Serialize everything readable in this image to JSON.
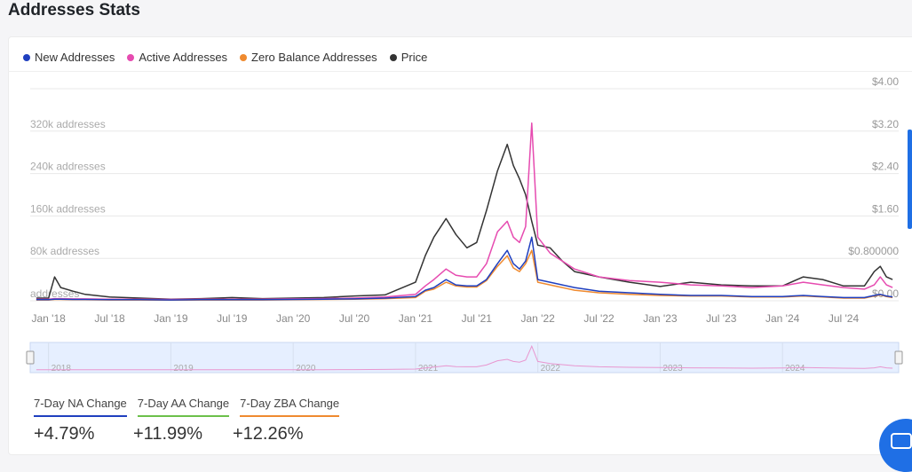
{
  "page_title": "Addresses Stats",
  "legend": [
    {
      "label": "New Addresses",
      "color": "#1f3fbf"
    },
    {
      "label": "Active Addresses",
      "color": "#e64bb0"
    },
    {
      "label": "Zero Balance Addresses",
      "color": "#ef8a2f"
    },
    {
      "label": "Price",
      "color": "#333333"
    }
  ],
  "tabs": [
    {
      "label": "7-Day NA Change",
      "value": "+4.79%",
      "color": "#1f3fbf"
    },
    {
      "label": "7-Day AA Change",
      "value": "+11.99%",
      "color": "#6cc04a"
    },
    {
      "label": "7-Day ZBA Change",
      "value": "+12.26%",
      "color": "#ef8a2f"
    }
  ],
  "chart_data": {
    "type": "line",
    "x_tick_labels": [
      "Jan '18",
      "Jul '18",
      "Jan '19",
      "Jul '19",
      "Jan '20",
      "Jul '20",
      "Jan '21",
      "Jul '21",
      "Jan '22",
      "Jul '22",
      "Jan '23",
      "Jul '23",
      "Jan '24",
      "Jul '24"
    ],
    "left_axis": {
      "tick_labels": [
        "addresses",
        "80k addresses",
        "160k addresses",
        "240k addresses",
        "320k addresses"
      ],
      "ylim": [
        0,
        400000
      ]
    },
    "right_axis": {
      "tick_labels": [
        "$0.00",
        "$0.800000",
        "$1.60",
        "$2.40",
        "$3.20",
        "$4.00"
      ],
      "ylim": [
        0,
        4.0
      ]
    },
    "navigator_labels": [
      "2018",
      "2019",
      "2020",
      "2021",
      "2022",
      "2023",
      "2024"
    ],
    "x": [
      2017.9,
      2018.0,
      2018.05,
      2018.1,
      2018.2,
      2018.3,
      2018.5,
      2018.75,
      2019.0,
      2019.25,
      2019.5,
      2019.75,
      2020.0,
      2020.25,
      2020.5,
      2020.75,
      2021.0,
      2021.08,
      2021.15,
      2021.25,
      2021.33,
      2021.42,
      2021.5,
      2021.58,
      2021.67,
      2021.75,
      2021.8,
      2021.85,
      2021.9,
      2021.95,
      2022.0,
      2022.1,
      2022.2,
      2022.3,
      2022.5,
      2022.75,
      2023.0,
      2023.25,
      2023.5,
      2023.75,
      2024.0,
      2024.17,
      2024.33,
      2024.5,
      2024.67,
      2024.75,
      2024.8,
      2024.85,
      2024.9
    ],
    "series": [
      {
        "name": "Price",
        "axis": "right",
        "values": [
          0.05,
          0.05,
          0.45,
          0.25,
          0.18,
          0.12,
          0.07,
          0.05,
          0.03,
          0.04,
          0.06,
          0.04,
          0.05,
          0.06,
          0.09,
          0.11,
          0.35,
          0.85,
          1.2,
          1.55,
          1.25,
          1.0,
          1.1,
          1.7,
          2.45,
          2.95,
          2.55,
          2.3,
          2.0,
          1.5,
          1.05,
          1.0,
          0.75,
          0.55,
          0.45,
          0.35,
          0.27,
          0.35,
          0.3,
          0.28,
          0.28,
          0.45,
          0.4,
          0.28,
          0.28,
          0.55,
          0.65,
          0.45,
          0.4
        ]
      },
      {
        "name": "New Addresses",
        "axis": "left",
        "values": [
          2000,
          2000,
          3000,
          3000,
          2500,
          2500,
          2000,
          2000,
          1500,
          2000,
          2000,
          2000,
          2500,
          3000,
          3500,
          5000,
          8000,
          20000,
          25000,
          40000,
          30000,
          28000,
          28000,
          40000,
          70000,
          95000,
          70000,
          60000,
          75000,
          120000,
          40000,
          35000,
          30000,
          25000,
          18000,
          15000,
          12000,
          10000,
          10000,
          8000,
          8000,
          10000,
          8000,
          6000,
          6000,
          10000,
          12000,
          9000,
          7000
        ]
      },
      {
        "name": "Active Addresses",
        "axis": "left",
        "values": [
          3000,
          3000,
          4000,
          4000,
          3500,
          3500,
          3000,
          3000,
          2500,
          3000,
          3000,
          3000,
          3500,
          4000,
          5000,
          7000,
          12000,
          28000,
          40000,
          60000,
          48000,
          45000,
          45000,
          70000,
          130000,
          150000,
          120000,
          110000,
          140000,
          335000,
          120000,
          90000,
          75000,
          60000,
          45000,
          38000,
          35000,
          30000,
          28000,
          25000,
          28000,
          35000,
          30000,
          25000,
          22000,
          30000,
          45000,
          30000,
          25000
        ]
      },
      {
        "name": "Zero Balance Addresses",
        "axis": "left",
        "values": [
          1500,
          1500,
          2500,
          2500,
          2000,
          2000,
          1500,
          1500,
          1200,
          1500,
          1500,
          1500,
          2000,
          2500,
          3000,
          4000,
          6000,
          18000,
          22000,
          35000,
          28000,
          26000,
          26000,
          38000,
          65000,
          85000,
          62000,
          55000,
          70000,
          95000,
          35000,
          30000,
          25000,
          20000,
          15000,
          12000,
          10000,
          9000,
          9000,
          7000,
          7000,
          9000,
          7000,
          5000,
          5000,
          9000,
          11000,
          8000,
          6000
        ]
      }
    ]
  }
}
